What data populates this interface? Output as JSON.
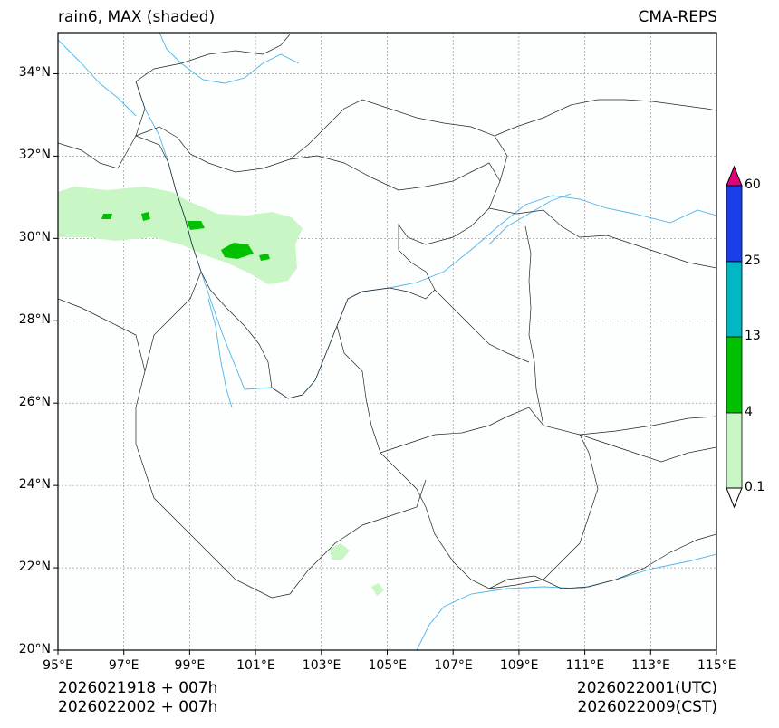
{
  "header": {
    "left_title": "rain6, MAX (shaded)",
    "right_title": "CMA-REPS"
  },
  "map": {
    "lon_ticks": [
      "95°E",
      "97°E",
      "99°E",
      "101°E",
      "103°E",
      "105°E",
      "107°E",
      "109°E",
      "111°E",
      "113°E",
      "115°E"
    ],
    "lat_ticks": [
      "20°N",
      "22°N",
      "24°N",
      "26°N",
      "28°N",
      "30°N",
      "32°N",
      "34°N"
    ],
    "lon_range": [
      95,
      115
    ],
    "lat_range": [
      20,
      35
    ]
  },
  "colorbar": {
    "levels": [
      "0.1",
      "4",
      "13",
      "25",
      "60"
    ],
    "colors": [
      "#ffffff",
      "#c8f7c5",
      "#00c000",
      "#00b7c3",
      "#1a3ee8",
      "#e0007a"
    ]
  },
  "footer": {
    "init_left_1": "2026021918  +  007h",
    "init_left_2": "2026022002  +  007h",
    "valid_right_1": "2026022001(UTC)",
    "valid_right_2": "2026022009(CST)"
  }
}
